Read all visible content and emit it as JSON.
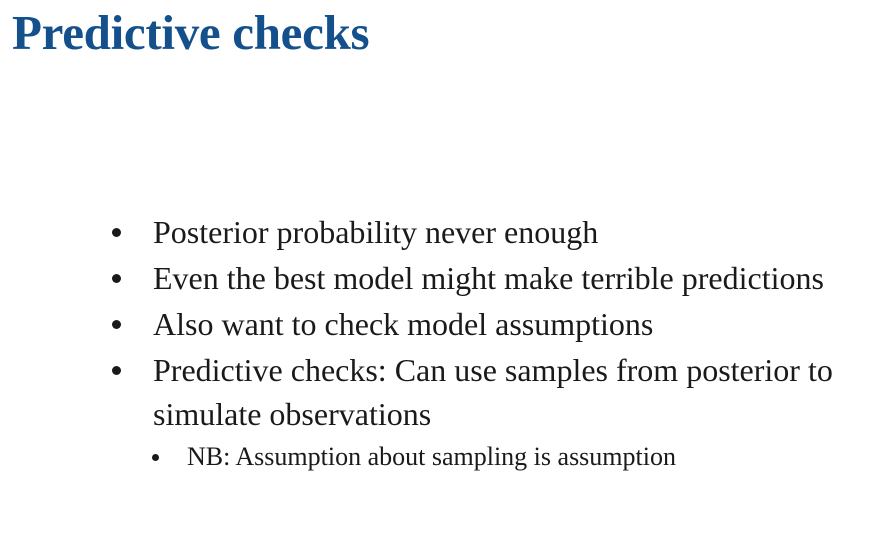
{
  "slide": {
    "title": "Predictive checks",
    "bullets": [
      {
        "text": "Posterior probability never enough"
      },
      {
        "text": "Even the best model might make terrible predictions"
      },
      {
        "text": "Also want to check model assumptions"
      },
      {
        "text": "Predictive checks: Can use samples from posterior to simulate observations"
      }
    ],
    "sub_bullets": [
      {
        "text": "NB: Assumption about sampling is assumption"
      }
    ]
  }
}
